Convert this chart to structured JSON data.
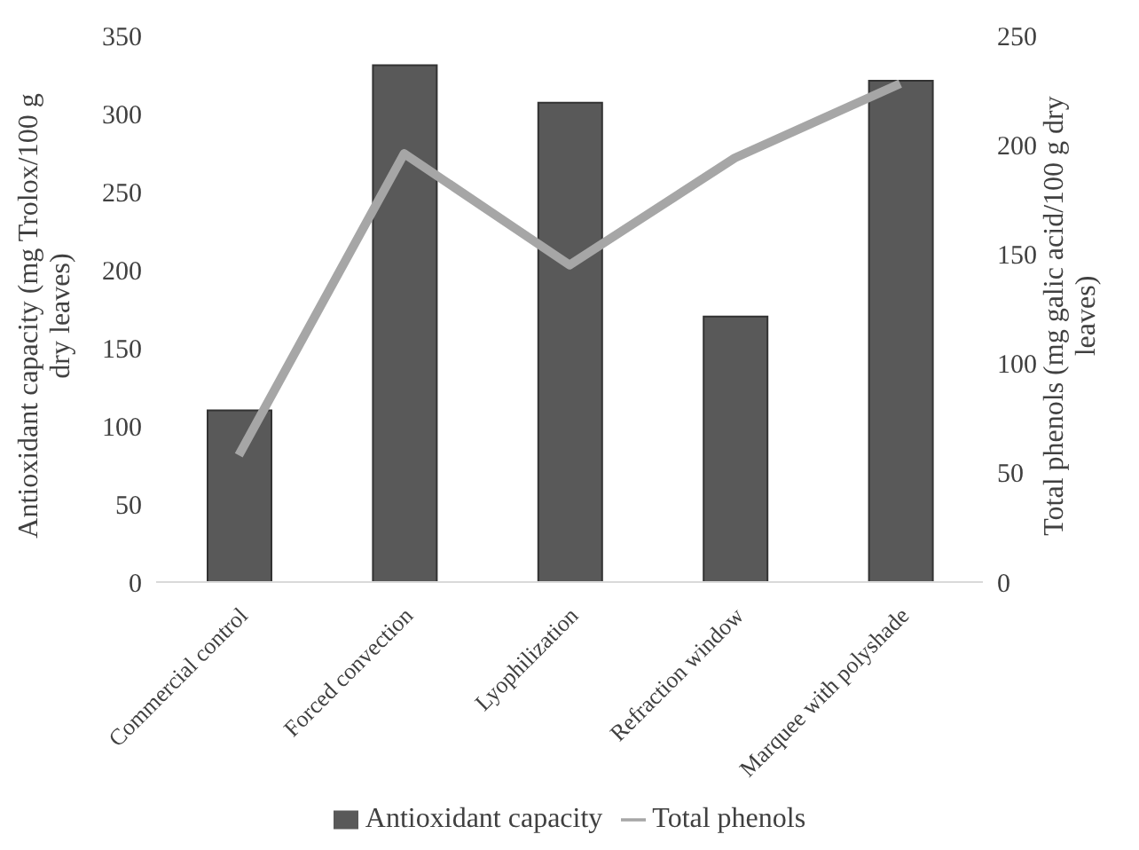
{
  "chart_data": {
    "type": "bar",
    "categories": [
      "Commercial control",
      "Forced convection",
      "Lyophilization",
      "Refraction window",
      "Marquee with polyshade"
    ],
    "series": [
      {
        "name": "Antioxidant capacity",
        "color": "#595959",
        "values": [
          110,
          331,
          307,
          170,
          321
        ]
      },
      {
        "name": "Total phenols",
        "type": "line",
        "axis": "y2",
        "color": "#a6a6a6",
        "values": [
          58,
          196,
          145,
          194,
          228
        ]
      }
    ],
    "ylabel": "Antioxidant capacity (mg Trolox/100 g dry leaves)",
    "y2label": "Total phenols (mg galic acid/100 g dry leaves)",
    "ylim": [
      0,
      350
    ],
    "yticks": [
      0,
      50,
      100,
      150,
      200,
      250,
      300,
      350
    ],
    "y2lim": [
      0,
      250
    ],
    "y2ticks": [
      0,
      50,
      100,
      150,
      200,
      250
    ],
    "legend": "bottom",
    "marker": "none",
    "line_style": "solid"
  }
}
